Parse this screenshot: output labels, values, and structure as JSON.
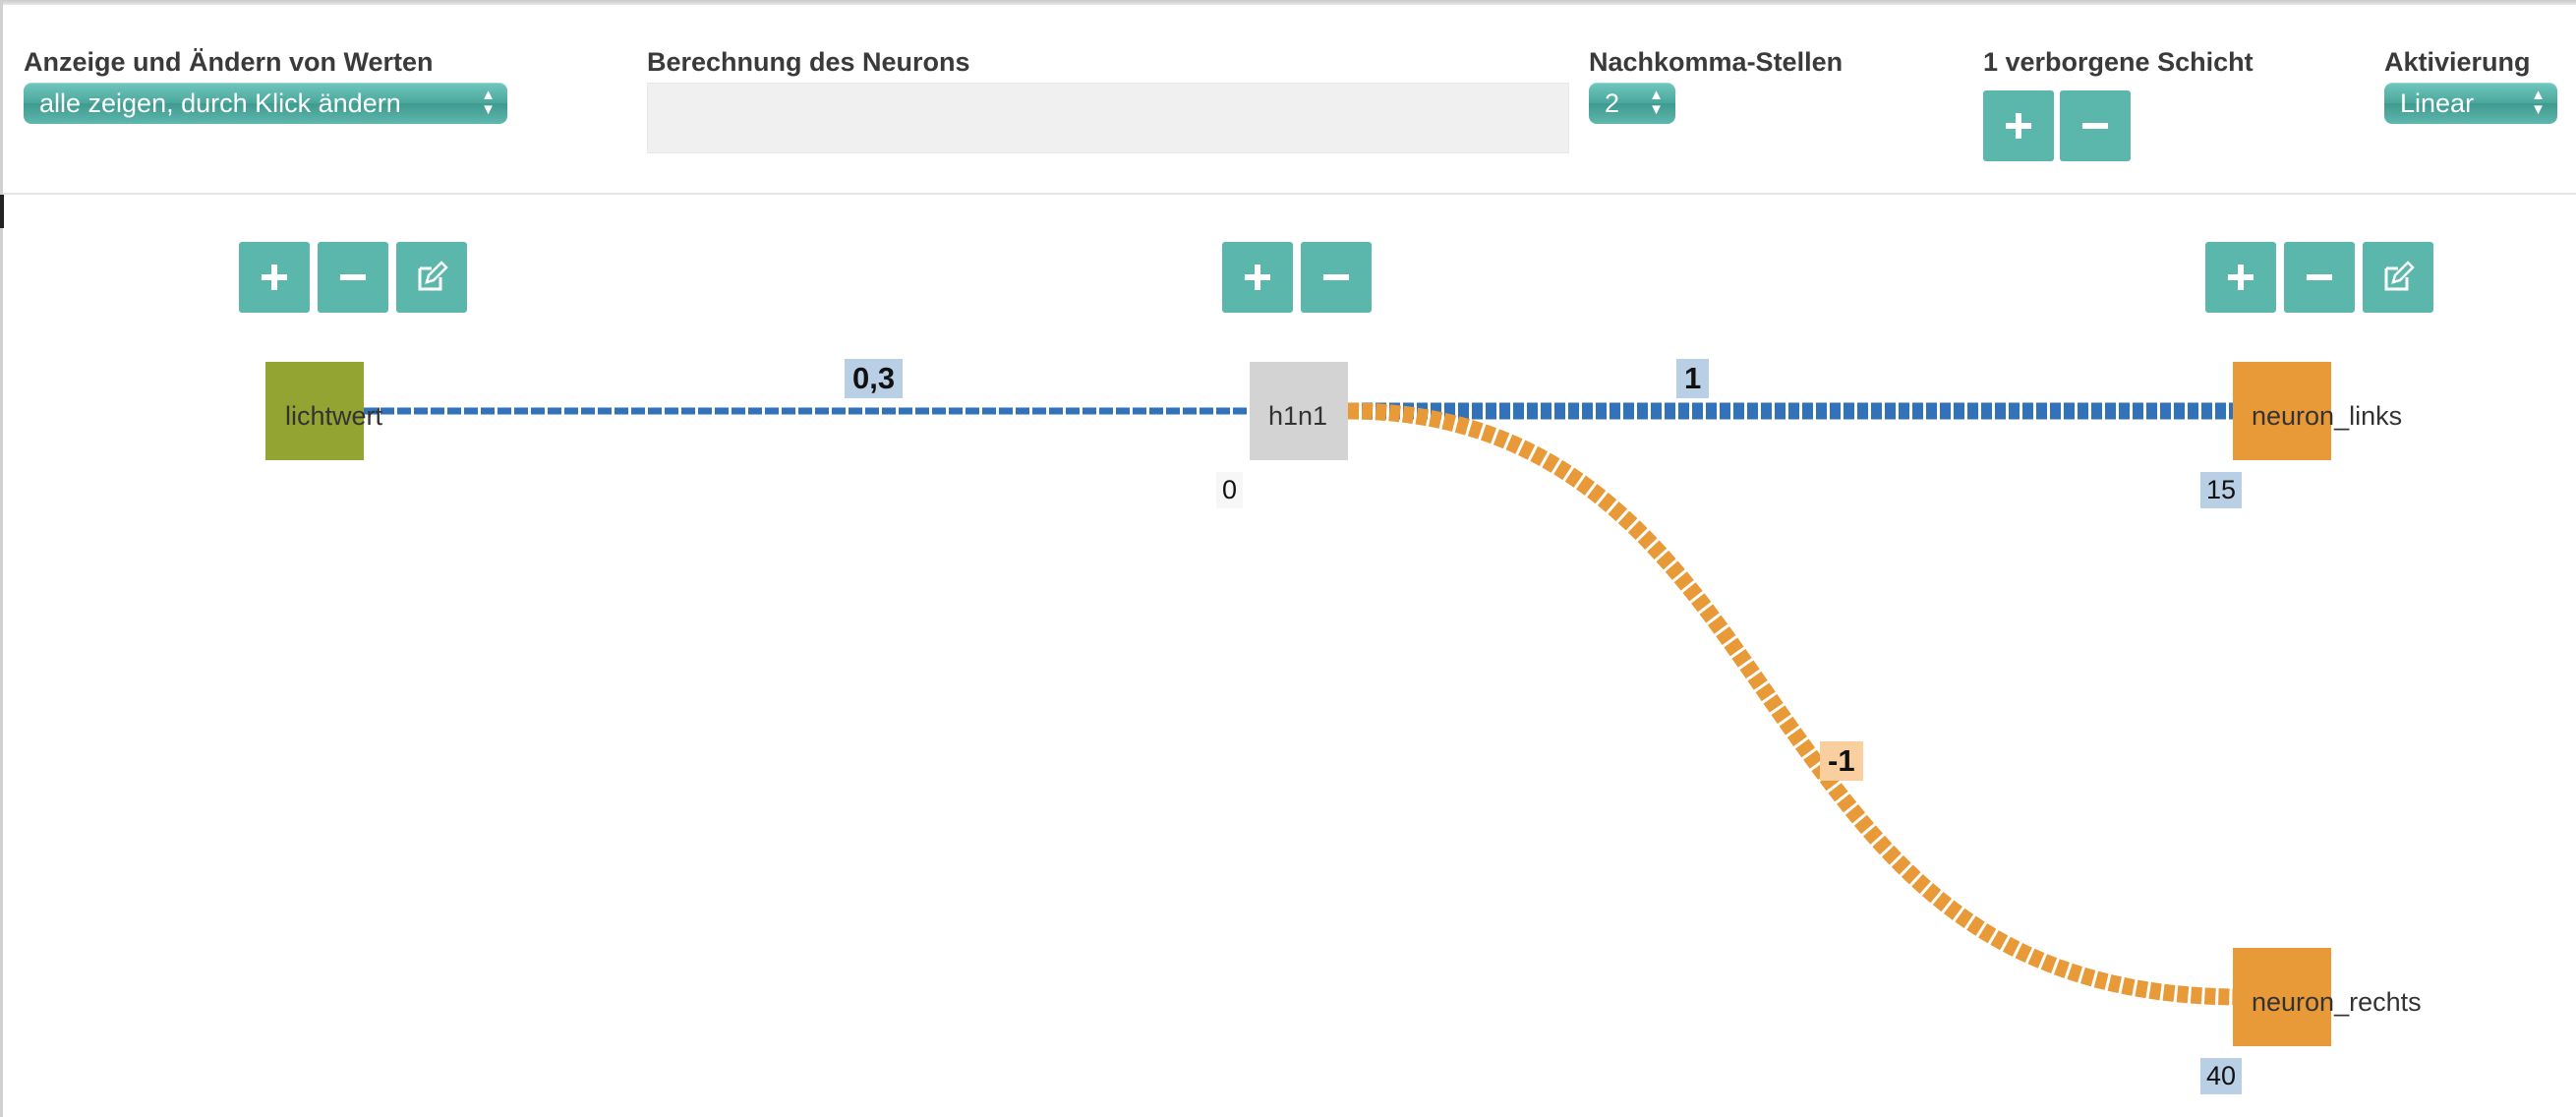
{
  "toolbar": {
    "display_mode": {
      "label": "Anzeige und Ändern von Werten",
      "selected": "alle zeigen, durch Klick ändern"
    },
    "neuron_calc": {
      "label": "Berechnung des Neurons",
      "value": ""
    },
    "decimals": {
      "label": "Nachkomma-Stellen",
      "selected": "2"
    },
    "hidden_layers": {
      "label": "1 verborgene Schicht"
    },
    "activation": {
      "label": "Aktivierung",
      "selected": "Linear"
    }
  },
  "network": {
    "nodes": {
      "input": {
        "name": "lichtwert",
        "color": "#93a432"
      },
      "hidden": {
        "name": "h1n1",
        "value": "0",
        "color": "#d3d3d3"
      },
      "out_left": {
        "name": "neuron_links",
        "value": "15",
        "color": "#e89a38"
      },
      "out_right": {
        "name": "neuron_rechts",
        "value": "40",
        "color": "#e89a38"
      }
    },
    "weights": {
      "input_to_hidden": "0,3",
      "hidden_to_left": "1",
      "hidden_to_right": "-1"
    }
  },
  "colors": {
    "accent": "#5bb6ab",
    "positive_weight": "#3272b8",
    "negative_weight": "#e89a38",
    "positive_label_bg": "#b8cfe6",
    "negative_label_bg": "#f9cf9f"
  },
  "icons": {
    "add": "plus-icon",
    "remove": "minus-icon",
    "edit": "edit-icon",
    "select_arrows": "updown-arrows-icon"
  }
}
